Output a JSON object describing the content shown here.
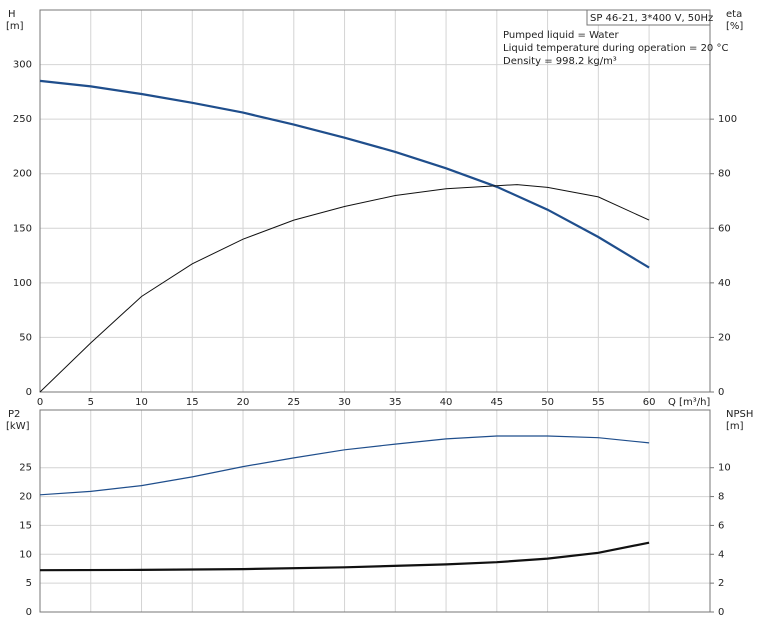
{
  "chart_data": [
    {
      "type": "line",
      "y_label": "H",
      "y_unit": "[m]",
      "y2_label": "eta",
      "y2_unit": "[%]",
      "x_label": "Q [m³/h]",
      "title": "SP 46-21, 3*400 V, 50Hz",
      "annotations": [
        "Pumped liquid = Water",
        "Liquid temperature during operation = 20 °C",
        "Density = 998.2 kg/m³"
      ],
      "xlim": [
        0,
        66
      ],
      "xticks": [
        0,
        5,
        10,
        15,
        20,
        25,
        30,
        35,
        40,
        45,
        50,
        55,
        60
      ],
      "ylim": [
        0,
        350
      ],
      "yticks": [
        0,
        50,
        100,
        150,
        200,
        250,
        300
      ],
      "y2lim": [
        0,
        140
      ],
      "y2ticks": [
        0,
        20,
        40,
        60,
        80,
        100
      ],
      "grid": true,
      "series": [
        {
          "color": "#1f4e8c",
          "width": 2.2,
          "x": [
            0,
            5,
            10,
            15,
            20,
            25,
            30,
            35,
            40,
            45,
            50,
            55,
            60
          ],
          "values": [
            285,
            280,
            273,
            265,
            256,
            245,
            233,
            220,
            205,
            188,
            167,
            142,
            114
          ]
        },
        {
          "color": "#111111",
          "width": 1,
          "axis": "y2",
          "x": [
            0,
            5,
            10,
            15,
            20,
            25,
            30,
            35,
            40,
            45,
            47,
            50,
            55,
            60
          ],
          "values": [
            0,
            18,
            35,
            47,
            56,
            63,
            68,
            72,
            74.5,
            75.6,
            76,
            75,
            71.5,
            63
          ]
        }
      ]
    },
    {
      "type": "line",
      "y_label": "P2",
      "y_unit": "[kW]",
      "y2_label": "NPSH",
      "y2_unit": "[m]",
      "xlim": [
        0,
        66
      ],
      "xticks": [
        0,
        5,
        10,
        15,
        20,
        25,
        30,
        35,
        40,
        45,
        50,
        55,
        60
      ],
      "ylim": [
        0,
        35
      ],
      "yticks": [
        0,
        5,
        10,
        15,
        20,
        25
      ],
      "y2lim": [
        0,
        14
      ],
      "y2ticks": [
        0,
        2,
        4,
        6,
        8,
        10
      ],
      "grid": true,
      "series": [
        {
          "color": "#1f4e8c",
          "width": 1.2,
          "x": [
            0,
            5,
            10,
            15,
            20,
            25,
            30,
            35,
            40,
            45,
            50,
            55,
            60
          ],
          "values": [
            20.3,
            20.9,
            21.9,
            23.4,
            25.2,
            26.7,
            28.1,
            29.1,
            30,
            30.5,
            30.5,
            30.2,
            29.3
          ]
        },
        {
          "color": "#111111",
          "width": 2.2,
          "axis": "y2",
          "x": [
            0,
            10,
            20,
            30,
            40,
            45,
            50,
            55,
            60
          ],
          "values": [
            2.9,
            2.92,
            2.97,
            3.1,
            3.3,
            3.45,
            3.7,
            4.1,
            4.8
          ]
        }
      ]
    }
  ]
}
